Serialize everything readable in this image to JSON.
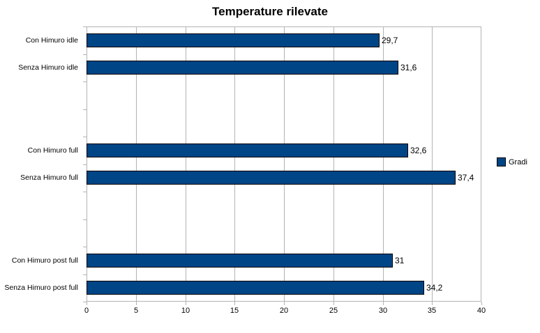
{
  "title": "Temperature rilevate",
  "legend": {
    "label": "Gradi",
    "color": "#004586"
  },
  "chart_data": {
    "type": "bar",
    "orientation": "horizontal",
    "title": "Temperature rilevate",
    "categories": [
      "Con Himuro idle",
      "Senza Himuro idle",
      "Con Himuro full",
      "Senza Himuro full",
      "Con Himuro post full",
      "Senza Himuro post full"
    ],
    "values": [
      29.7,
      31.6,
      32.6,
      37.4,
      31,
      34.2
    ],
    "value_labels": [
      "29,7",
      "31,6",
      "32,6",
      "37,4",
      "31",
      "34,2"
    ],
    "row_slots": [
      1,
      2,
      5,
      6,
      9,
      10
    ],
    "n_slots": 10,
    "xlim": [
      0,
      40
    ],
    "x_ticks": [
      0,
      5,
      10,
      15,
      20,
      25,
      30,
      35,
      40
    ],
    "x_tick_labels": [
      "0",
      "5",
      "10",
      "15",
      "20",
      "25",
      "30",
      "35",
      "40"
    ],
    "xlabel": "",
    "ylabel": "",
    "series": [
      {
        "name": "Gradi",
        "values": [
          29.7,
          31.6,
          32.6,
          37.4,
          31,
          34.2
        ]
      }
    ],
    "legend_entries": [
      "Gradi"
    ],
    "legend_position": "right",
    "grid": "vertical-only",
    "bar_color": "#004586",
    "bar_border_color": "#000000",
    "grid_color": "#b3b3b3",
    "decimal_separator": ","
  }
}
